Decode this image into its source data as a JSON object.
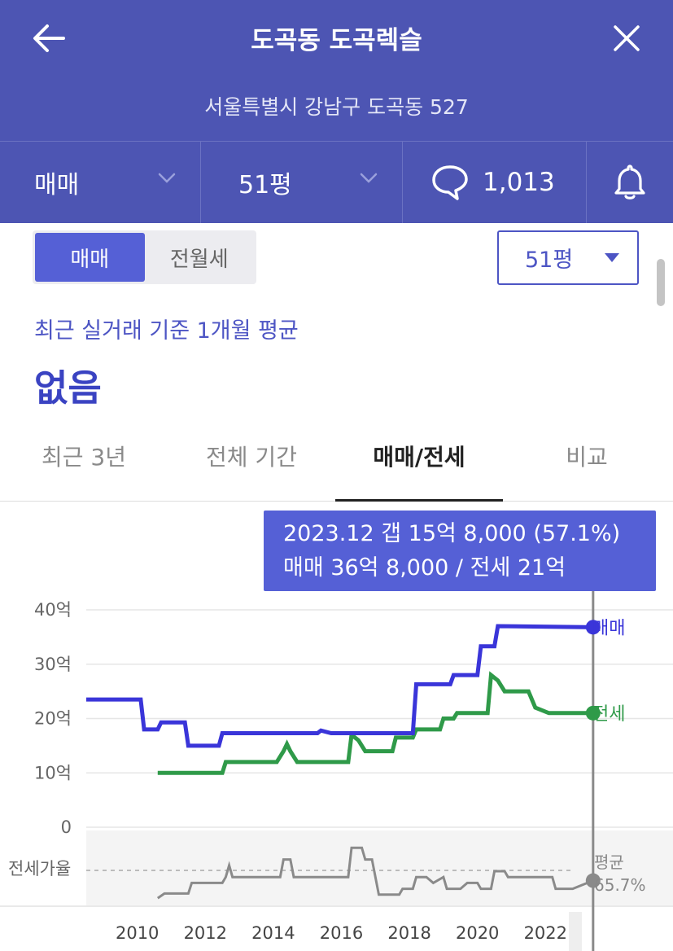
{
  "header": {
    "title": "도곡동 도곡렉슬",
    "address": "서울특별시 강남구 도곡동 527",
    "trade_type": "매매",
    "size": "51평",
    "comment_count": "1,013"
  },
  "toggle": {
    "options": [
      "매매",
      "전월세"
    ],
    "active": "매매"
  },
  "size_select": {
    "value": "51평"
  },
  "average": {
    "label": "최근 실거래 기준 1개월 평균",
    "value": "없음"
  },
  "tabs": [
    {
      "label": "최근 3년"
    },
    {
      "label": "전체 기간"
    },
    {
      "label": "매매/전세",
      "active": true
    },
    {
      "label": "비교"
    }
  ],
  "tooltip": {
    "line1": "2023.12  갭 15억 8,000 (57.1%)",
    "line2": "매매 36억 8,000 / 전세 21억"
  },
  "colors": {
    "header": "#4d55b3",
    "accent": "#5560d6",
    "sale": "#3a35d9",
    "jeonse": "#2f9a49",
    "ratio": "#8a8a8a"
  },
  "chart_data": {
    "type": "line",
    "xlabel": "",
    "ylabel": "",
    "ylim": [
      0,
      40
    ],
    "ytick_labels": [
      "40억",
      "30억",
      "20억",
      "10억",
      "0"
    ],
    "xtick_labels": [
      "2010",
      "2012",
      "2014",
      "2016",
      "2018",
      "2020",
      "2022"
    ],
    "x_range": [
      2009.0,
      2024.0
    ],
    "grid": true,
    "series": [
      {
        "name": "매매",
        "unit": "억",
        "points": [
          [
            2009.0,
            23.5
          ],
          [
            2010.6,
            23.5
          ],
          [
            2010.7,
            18.0
          ],
          [
            2011.1,
            18.0
          ],
          [
            2011.2,
            19.3
          ],
          [
            2011.9,
            19.3
          ],
          [
            2012.0,
            15.0
          ],
          [
            2012.9,
            15.0
          ],
          [
            2013.0,
            17.3
          ],
          [
            2015.8,
            17.3
          ],
          [
            2015.9,
            17.8
          ],
          [
            2016.2,
            17.3
          ],
          [
            2018.6,
            17.3
          ],
          [
            2018.7,
            26.3
          ],
          [
            2019.7,
            26.3
          ],
          [
            2019.8,
            28.0
          ],
          [
            2020.5,
            28.0
          ],
          [
            2020.6,
            33.3
          ],
          [
            2021.0,
            33.3
          ],
          [
            2021.1,
            37.0
          ],
          [
            2023.9,
            36.8
          ]
        ]
      },
      {
        "name": "전세",
        "unit": "억",
        "points": [
          [
            2011.1,
            10.0
          ],
          [
            2013.0,
            10.0
          ],
          [
            2013.1,
            12.0
          ],
          [
            2014.6,
            12.0
          ],
          [
            2014.8,
            14.0
          ],
          [
            2014.9,
            15.3
          ],
          [
            2015.0,
            14.0
          ],
          [
            2015.2,
            12.0
          ],
          [
            2016.7,
            12.0
          ],
          [
            2016.8,
            17.0
          ],
          [
            2017.0,
            16.0
          ],
          [
            2017.2,
            14.0
          ],
          [
            2018.0,
            14.0
          ],
          [
            2018.1,
            16.5
          ],
          [
            2018.6,
            16.5
          ],
          [
            2018.7,
            18.0
          ],
          [
            2019.4,
            18.0
          ],
          [
            2019.5,
            20.0
          ],
          [
            2019.8,
            20.0
          ],
          [
            2019.9,
            21.0
          ],
          [
            2020.8,
            21.0
          ],
          [
            2020.9,
            28.0
          ],
          [
            2021.1,
            27.0
          ],
          [
            2021.3,
            25.0
          ],
          [
            2022.0,
            25.0
          ],
          [
            2022.2,
            22.0
          ],
          [
            2022.6,
            21.0
          ],
          [
            2023.9,
            21.0
          ]
        ]
      },
      {
        "name": "전세가율",
        "points": [
          [
            2011.1,
            42
          ],
          [
            2011.3,
            46
          ],
          [
            2012.0,
            46
          ],
          [
            2012.1,
            55
          ],
          [
            2013.0,
            55
          ],
          [
            2013.1,
            60
          ],
          [
            2013.2,
            70
          ],
          [
            2013.3,
            60
          ],
          [
            2014.7,
            60
          ],
          [
            2014.8,
            75
          ],
          [
            2015.0,
            75
          ],
          [
            2015.1,
            60
          ],
          [
            2016.7,
            60
          ],
          [
            2016.8,
            85
          ],
          [
            2017.1,
            85
          ],
          [
            2017.2,
            75
          ],
          [
            2017.4,
            75
          ],
          [
            2017.6,
            45
          ],
          [
            2018.2,
            45
          ],
          [
            2018.3,
            50
          ],
          [
            2018.6,
            50
          ],
          [
            2018.7,
            60
          ],
          [
            2019.0,
            60
          ],
          [
            2019.2,
            55
          ],
          [
            2019.5,
            60
          ],
          [
            2019.6,
            50
          ],
          [
            2020.0,
            50
          ],
          [
            2020.2,
            55
          ],
          [
            2020.5,
            55
          ],
          [
            2020.6,
            50
          ],
          [
            2020.9,
            50
          ],
          [
            2021.0,
            65
          ],
          [
            2021.3,
            65
          ],
          [
            2021.4,
            60
          ],
          [
            2022.7,
            60
          ],
          [
            2022.8,
            50
          ],
          [
            2023.3,
            50
          ],
          [
            2023.9,
            57
          ]
        ]
      }
    ],
    "series_labels": {
      "sale": "매매",
      "jeonse": "전세"
    },
    "ratio_label": "전세가율",
    "average_label": "평균",
    "average_ratio": "65.7%",
    "marker_x": 2023.9
  }
}
